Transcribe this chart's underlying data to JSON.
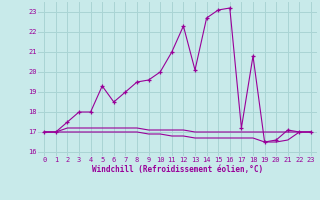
{
  "title": "",
  "xlabel": "Windchill (Refroidissement éolien,°C)",
  "ylabel": "",
  "background_color": "#c8eaea",
  "grid_color": "#aad4d4",
  "line_color": "#990099",
  "x_values": [
    0,
    1,
    2,
    3,
    4,
    5,
    6,
    7,
    8,
    9,
    10,
    11,
    12,
    13,
    14,
    15,
    16,
    17,
    18,
    19,
    20,
    21,
    22,
    23
  ],
  "main_curve": [
    17.0,
    17.0,
    17.5,
    18.0,
    18.0,
    19.3,
    18.5,
    19.0,
    19.5,
    19.6,
    20.0,
    21.0,
    22.3,
    20.1,
    22.7,
    23.1,
    23.2,
    17.2,
    20.8,
    16.5,
    16.6,
    17.1,
    17.0,
    17.0
  ],
  "flat_line1": [
    17.0,
    17.0,
    17.2,
    17.2,
    17.2,
    17.2,
    17.2,
    17.2,
    17.2,
    17.1,
    17.1,
    17.1,
    17.1,
    17.0,
    17.0,
    17.0,
    17.0,
    17.0,
    17.0,
    17.0,
    17.0,
    17.0,
    17.0,
    17.0
  ],
  "flat_line2": [
    17.0,
    17.0,
    17.0,
    17.0,
    17.0,
    17.0,
    17.0,
    17.0,
    17.0,
    16.9,
    16.9,
    16.8,
    16.8,
    16.7,
    16.7,
    16.7,
    16.7,
    16.7,
    16.7,
    16.5,
    16.5,
    16.6,
    17.0,
    17.0
  ],
  "ylim": [
    15.8,
    23.5
  ],
  "xlim": [
    -0.5,
    23.5
  ],
  "yticks": [
    16,
    17,
    18,
    19,
    20,
    21,
    22,
    23
  ],
  "xticks": [
    0,
    1,
    2,
    3,
    4,
    5,
    6,
    7,
    8,
    9,
    10,
    11,
    12,
    13,
    14,
    15,
    16,
    17,
    18,
    19,
    20,
    21,
    22,
    23
  ]
}
